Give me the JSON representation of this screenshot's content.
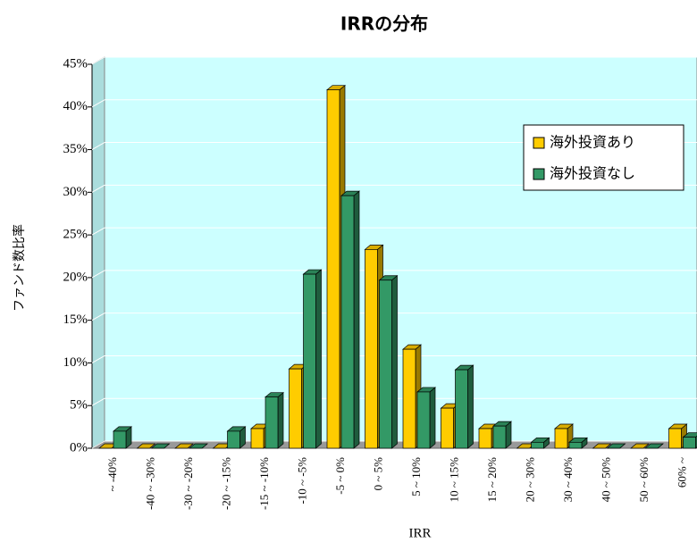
{
  "chart_data": {
    "type": "bar3d",
    "title": "IRRの分布",
    "x_label": "IRR",
    "y_label": "ファンド数比率",
    "categories": [
      "~ -40%",
      "-40 ~ -30%",
      "-30 ~ -20%",
      "-20 ~ -15%",
      "-15 ~ -10%",
      "-10 ~ -5%",
      "-5 ~ 0%",
      "0 ~ 5%",
      "5 ~ 10%",
      "10 ~ 15%",
      "15 ~ 20%",
      "20 ~ 30%",
      "30 ~ 40%",
      "40 ~ 50%",
      "50 ~ 60%",
      "60% ~"
    ],
    "series": [
      {
        "name": "海外投資あり",
        "color": "#ffcc00",
        "values": [
          0,
          0,
          0,
          0,
          2.3,
          9.3,
          42,
          23.3,
          11.6,
          4.7,
          2.3,
          0,
          2.3,
          0,
          0,
          2.3
        ]
      },
      {
        "name": "海外投資なし",
        "color": "#339966",
        "values": [
          2,
          0,
          0,
          2,
          6,
          20.4,
          29.6,
          19.7,
          6.6,
          9.2,
          2.6,
          0.7,
          0.7,
          0,
          0,
          1.3
        ]
      }
    ],
    "ylim": [
      0,
      45
    ],
    "yticks": [
      {
        "value": 0,
        "label": "0%"
      },
      {
        "value": 5,
        "label": "5%"
      },
      {
        "value": 10,
        "label": "10%"
      },
      {
        "value": 15,
        "label": "15%"
      },
      {
        "value": 20,
        "label": "20%"
      },
      {
        "value": 25,
        "label": "25%"
      },
      {
        "value": 30,
        "label": "30%"
      },
      {
        "value": 35,
        "label": "35%"
      },
      {
        "value": 40,
        "label": "40%"
      },
      {
        "value": 45,
        "label": "45%"
      }
    ],
    "grid": true,
    "legend": "upper right"
  }
}
